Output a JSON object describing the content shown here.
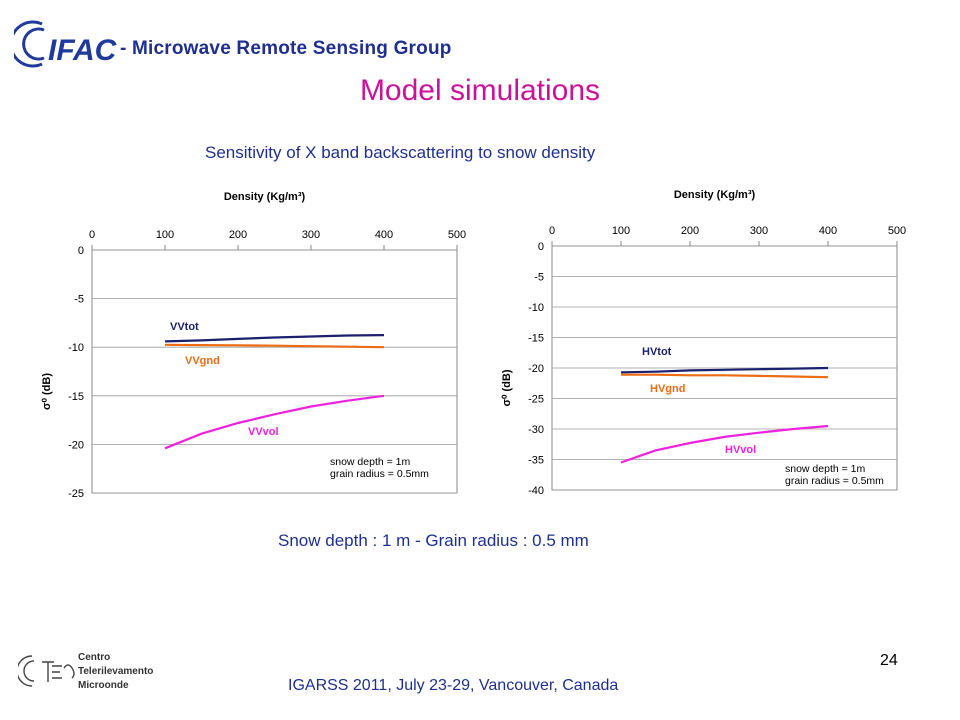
{
  "header": {
    "logo_text": "IFAC",
    "group": "- Microwave Remote Sensing Group"
  },
  "slide": {
    "title": "Model simulations",
    "subtitle": "Sensitivity of X band backscattering  to snow density",
    "caption": "Snow depth : 1 m  -    Grain radius :  0.5 mm",
    "page_number": "24"
  },
  "footer": {
    "conference": "IGARSS 2011, July 23-29, Vancouver, Canada",
    "ctm_lines": [
      "Centro",
      "Telerilevamento",
      "Microonde"
    ]
  },
  "colors": {
    "tot": "#1a1f6e",
    "gnd": "#ee6b12",
    "vol": "#ee22dd",
    "accent_title": "#cc1199",
    "text_blue": "#1f2f8f"
  },
  "chart_data": [
    {
      "type": "line",
      "title": "",
      "xlabel": "Density (Kg/m³)",
      "ylabel": "σ⁰ (dB)",
      "xlim": [
        0,
        500
      ],
      "ylim": [
        -25,
        0
      ],
      "xticks": [
        0,
        100,
        200,
        300,
        400,
        500
      ],
      "yticks": [
        0,
        -5,
        -10,
        -15,
        -20,
        -25
      ],
      "grid": true,
      "annotations": [
        "snow depth = 1m",
        "grain radius = 0.5mm"
      ],
      "series": [
        {
          "name": "VVtot",
          "color": "#1a1f6e",
          "x": [
            100,
            150,
            200,
            250,
            300,
            350,
            400
          ],
          "y": [
            -9.4,
            -9.3,
            -9.15,
            -9.0,
            -8.9,
            -8.8,
            -8.75
          ]
        },
        {
          "name": "VVgnd",
          "color": "#ee6b12",
          "x": [
            100,
            150,
            200,
            250,
            300,
            350,
            400
          ],
          "y": [
            -9.75,
            -9.78,
            -9.8,
            -9.85,
            -9.9,
            -9.95,
            -10.0
          ]
        },
        {
          "name": "VVvol",
          "color": "#ee22dd",
          "x": [
            100,
            150,
            200,
            250,
            300,
            350,
            400
          ],
          "y": [
            -20.4,
            -18.9,
            -17.8,
            -16.9,
            -16.1,
            -15.5,
            -15.0
          ]
        }
      ]
    },
    {
      "type": "line",
      "title": "",
      "xlabel": "Density (Kg/m³)",
      "ylabel": "σ⁰ (dB)",
      "xlim": [
        0,
        500
      ],
      "ylim": [
        -40,
        0
      ],
      "xticks": [
        0,
        100,
        200,
        300,
        400,
        500
      ],
      "yticks": [
        0,
        -5,
        -10,
        -15,
        -20,
        -25,
        -30,
        -35,
        -40
      ],
      "grid": true,
      "annotations": [
        "snow depth = 1m",
        "grain radius = 0.5mm"
      ],
      "series": [
        {
          "name": "HVtot",
          "color": "#1a1f6e",
          "x": [
            100,
            150,
            200,
            250,
            300,
            350,
            400
          ],
          "y": [
            -20.7,
            -20.6,
            -20.4,
            -20.3,
            -20.2,
            -20.1,
            -20.0
          ]
        },
        {
          "name": "HVgnd",
          "color": "#ee6b12",
          "x": [
            100,
            150,
            200,
            250,
            300,
            350,
            400
          ],
          "y": [
            -21.1,
            -21.1,
            -21.2,
            -21.2,
            -21.3,
            -21.4,
            -21.5
          ]
        },
        {
          "name": "HVvol",
          "color": "#ee22dd",
          "x": [
            100,
            150,
            200,
            250,
            300,
            350,
            400
          ],
          "y": [
            -35.5,
            -33.5,
            -32.3,
            -31.3,
            -30.6,
            -30.0,
            -29.5
          ]
        }
      ]
    }
  ]
}
